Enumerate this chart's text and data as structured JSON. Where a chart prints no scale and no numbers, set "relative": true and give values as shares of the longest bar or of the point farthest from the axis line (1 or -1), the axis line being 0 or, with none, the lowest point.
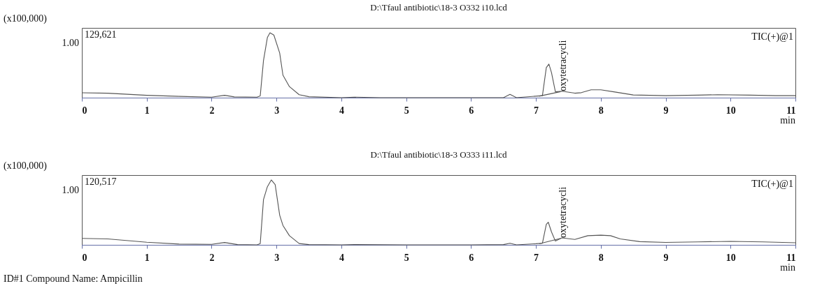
{
  "chart_data": [
    {
      "type": "line",
      "title": "D:\\Tfaul antibiotic\\18-3 O332 i10.lcd",
      "xlabel": "min",
      "ylabel": "(x100,000)",
      "relative": true,
      "xlim": [
        0,
        11
      ],
      "xticks": [
        0,
        1,
        2,
        3,
        4,
        5,
        6,
        7,
        8,
        9,
        10,
        11
      ],
      "line_style": "solid",
      "annotations": [
        "1.00",
        "129,621",
        "TIC(+)@1",
        {
          "text": "oxytetracycli",
          "x": 7.42,
          "y": 0.1
        }
      ],
      "series": [
        {
          "color": "#555555",
          "x": [
            0,
            0.4,
            1.0,
            1.5,
            2.0,
            2.2,
            2.35,
            2.7,
            2.75,
            2.8,
            2.86,
            2.9,
            2.96,
            3.05,
            3.1,
            3.2,
            3.35,
            3.5,
            4.0,
            4.2,
            4.6,
            5.0,
            5.5,
            6.0,
            6.5,
            6.6,
            6.7,
            7.0,
            7.1,
            7.16,
            7.2,
            7.24,
            7.3,
            7.4,
            7.6,
            7.7,
            7.85,
            8.0,
            8.2,
            8.5,
            9.0,
            9.5,
            9.8,
            10.3,
            10.7,
            11.0
          ],
          "values": [
            0.076,
            0.068,
            0.036,
            0.02,
            0.008,
            0.036,
            0.012,
            0.008,
            0.028,
            0.571,
            0.926,
            1,
            0.965,
            0.687,
            0.347,
            0.17,
            0.046,
            0.015,
            0,
            0.008,
            0,
            0,
            0,
            0,
            0,
            0.05,
            0,
            0.023,
            0.031,
            0.463,
            0.517,
            0.386,
            0.09,
            0.1,
            0.069,
            0.077,
            0.121,
            0.121,
            0.09,
            0.042,
            0.031,
            0.039,
            0.046,
            0.039,
            0.031,
            0.031
          ]
        },
        {
          "color": "#555555",
          "x": [
            7.05,
            7.38
          ],
          "values": [
            0.023,
            0.093
          ]
        }
      ]
    },
    {
      "type": "line",
      "title": "D:\\Tfaul antibiotic\\18-3 O333 i11.lcd",
      "xlabel": "min",
      "ylabel": "(x100,000)",
      "relative": true,
      "xlim": [
        0,
        11
      ],
      "xticks": [
        0,
        1,
        2,
        3,
        4,
        5,
        6,
        7,
        8,
        9,
        10,
        11
      ],
      "line_style": "solid",
      "annotations": [
        "1.00",
        "120,517",
        "TIC(+)@1",
        "ID#1 Compound Name: Ampicillin",
        {
          "text": "oxytetracycli",
          "x": 7.42,
          "y": 0.108
        }
      ],
      "series": [
        {
          "color": "#555555",
          "x": [
            0,
            0.4,
            1.0,
            1.5,
            2.0,
            2.2,
            2.4,
            2.7,
            2.75,
            2.8,
            2.86,
            2.92,
            2.98,
            3.05,
            3.1,
            3.2,
            3.35,
            3.5,
            4.0,
            4.2,
            5.0,
            5.5,
            6.0,
            6.5,
            6.6,
            6.7,
            7.0,
            7.1,
            7.16,
            7.19,
            7.24,
            7.3,
            7.4,
            7.6,
            7.8,
            8.0,
            8.15,
            8.3,
            8.6,
            9.0,
            9.5,
            10.0,
            10.5,
            11.0
          ],
          "values": [
            0.1,
            0.091,
            0.04,
            0.012,
            0.008,
            0.036,
            0.004,
            0,
            0.02,
            0.697,
            0.896,
            1,
            0.929,
            0.456,
            0.299,
            0.141,
            0.02,
            0.004,
            0,
            0.004,
            0,
            0,
            0,
            0.004,
            0.025,
            0,
            0.017,
            0.025,
            0.315,
            0.349,
            0.199,
            0.058,
            0.108,
            0.083,
            0.141,
            0.149,
            0.141,
            0.091,
            0.05,
            0.038,
            0.046,
            0.054,
            0.046,
            0.033
          ]
        },
        {
          "color": "#555555",
          "x": [
            7.05,
            7.38
          ],
          "values": [
            0.017,
            0.1
          ]
        }
      ]
    }
  ]
}
